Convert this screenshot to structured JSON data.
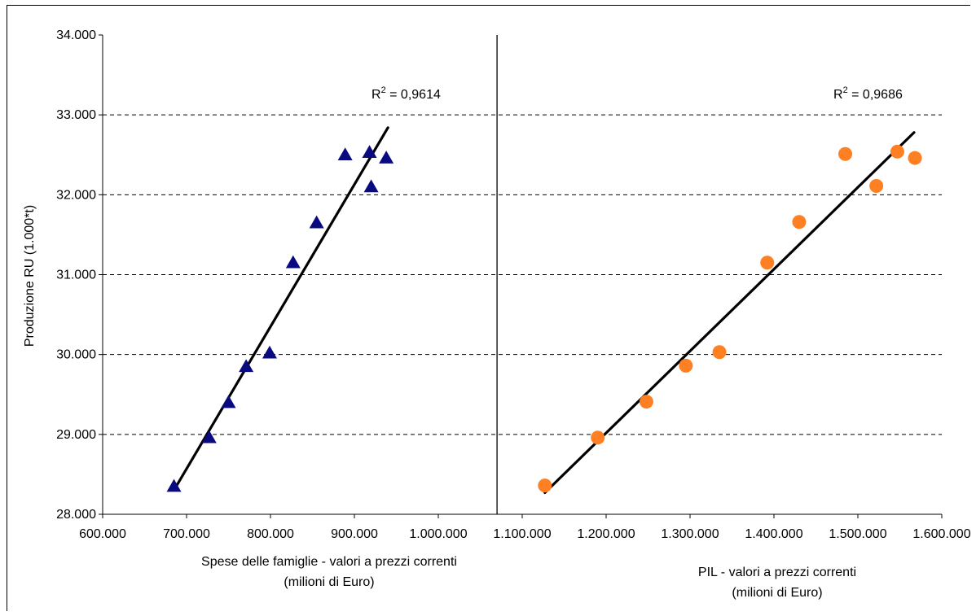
{
  "chart_data": {
    "type": "scatter",
    "ylabel": "Produzione RU (1.000*t)",
    "ylim": [
      28000,
      34000
    ],
    "yticks": [
      28000,
      29000,
      30000,
      31000,
      32000,
      33000,
      34000
    ],
    "ytick_labels": [
      "28.000",
      "29.000",
      "30.000",
      "31.000",
      "32.000",
      "33.000",
      "34.000"
    ],
    "xlim": [
      600000,
      1600000
    ],
    "xticks": [
      600000,
      700000,
      800000,
      900000,
      1000000,
      1100000,
      1200000,
      1300000,
      1400000,
      1500000,
      1600000
    ],
    "xtick_labels": [
      "600.000",
      "700.000",
      "800.000",
      "900.000",
      "1.000.000",
      "1.100.000",
      "1.200.000",
      "1.300.000",
      "1.400.000",
      "1.500.000",
      "1.600.000"
    ],
    "panel_divider_x": 1070000,
    "grid": "horizontal-dashed",
    "panels": [
      {
        "xlabel_line1": "Spese delle famiglie - valori a prezzi correnti",
        "xlabel_line2": "(milioni di Euro)",
        "r2_label": "R",
        "r2_exp": "2",
        "r2_value": " = 0,9614",
        "marker": "triangle",
        "color": "#0a0a80",
        "points": [
          {
            "x": 685000,
            "y": 28350
          },
          {
            "x": 727000,
            "y": 28960
          },
          {
            "x": 750000,
            "y": 29400
          },
          {
            "x": 771000,
            "y": 29850
          },
          {
            "x": 799000,
            "y": 30020
          },
          {
            "x": 827000,
            "y": 31150
          },
          {
            "x": 855000,
            "y": 31650
          },
          {
            "x": 889000,
            "y": 32500
          },
          {
            "x": 918000,
            "y": 32530
          },
          {
            "x": 920000,
            "y": 32100
          },
          {
            "x": 938000,
            "y": 32460
          }
        ],
        "trend": [
          {
            "x": 686000,
            "y": 28320
          },
          {
            "x": 940000,
            "y": 32840
          }
        ]
      },
      {
        "xlabel_line1": "PIL - valori a prezzi correnti",
        "xlabel_line2": "(milioni di Euro)",
        "r2_label": "R",
        "r2_exp": "2",
        "r2_value": " = 0,9686",
        "marker": "circle",
        "color": "#ff7f23",
        "points": [
          {
            "x": 1127000,
            "y": 28360
          },
          {
            "x": 1190000,
            "y": 28960
          },
          {
            "x": 1248000,
            "y": 29410
          },
          {
            "x": 1295000,
            "y": 29860
          },
          {
            "x": 1335000,
            "y": 30030
          },
          {
            "x": 1392000,
            "y": 31150
          },
          {
            "x": 1430000,
            "y": 31660
          },
          {
            "x": 1485000,
            "y": 32510
          },
          {
            "x": 1522000,
            "y": 32110
          },
          {
            "x": 1547000,
            "y": 32540
          },
          {
            "x": 1568000,
            "y": 32460
          }
        ],
        "trend": [
          {
            "x": 1127000,
            "y": 28270
          },
          {
            "x": 1567000,
            "y": 32780
          }
        ]
      }
    ]
  }
}
